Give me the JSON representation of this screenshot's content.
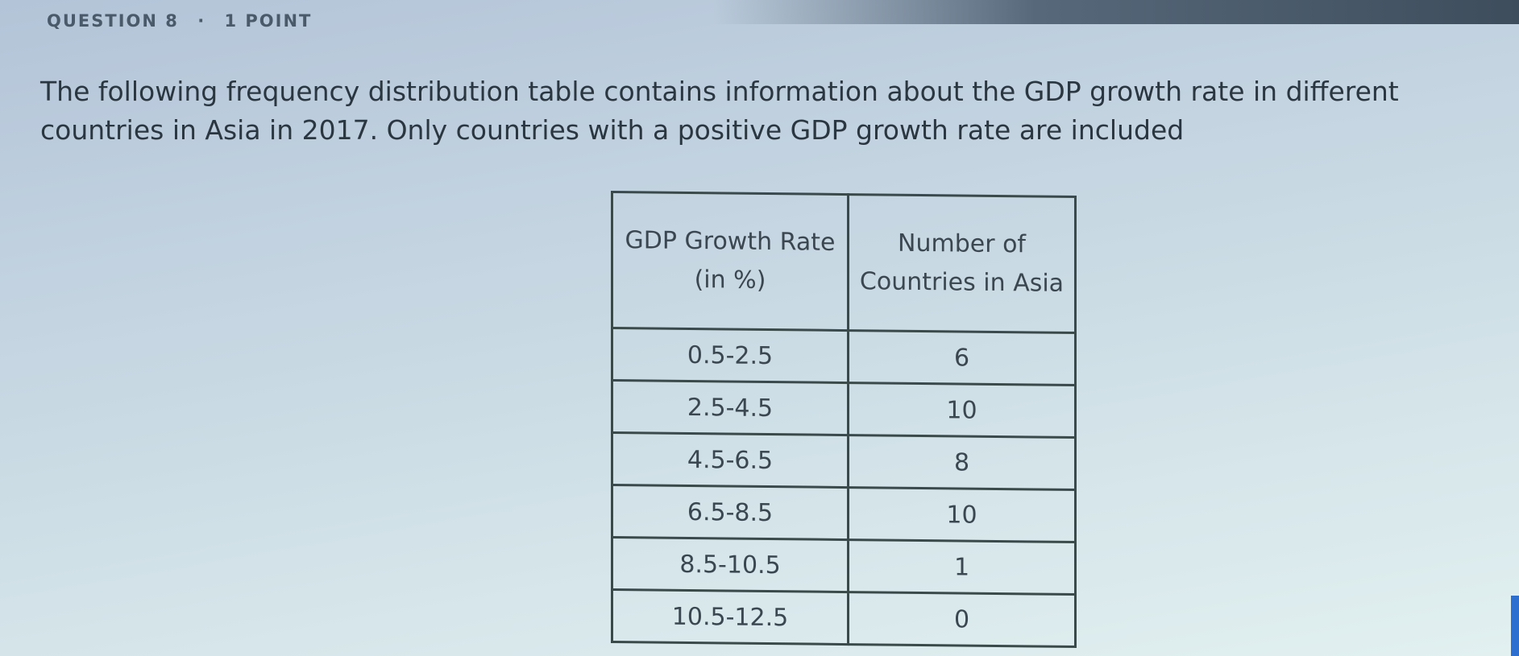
{
  "question": {
    "number_label": "QUESTION 8",
    "separator": "·",
    "points_label": "1 POINT"
  },
  "prompt": "The following frequency distribution table contains information about the GDP growth rate in different countries in Asia in 2017. Only countries with a positive GDP growth rate are included",
  "table": {
    "headers": [
      "GDP Growth Rate (in %)",
      "Number of Countries in Asia"
    ],
    "rows": [
      [
        "0.5-2.5",
        "6"
      ],
      [
        "2.5-4.5",
        "10"
      ],
      [
        "4.5-6.5",
        "8"
      ],
      [
        "6.5-8.5",
        "10"
      ],
      [
        "8.5-10.5",
        "1"
      ],
      [
        "10.5-12.5",
        "0"
      ]
    ]
  }
}
